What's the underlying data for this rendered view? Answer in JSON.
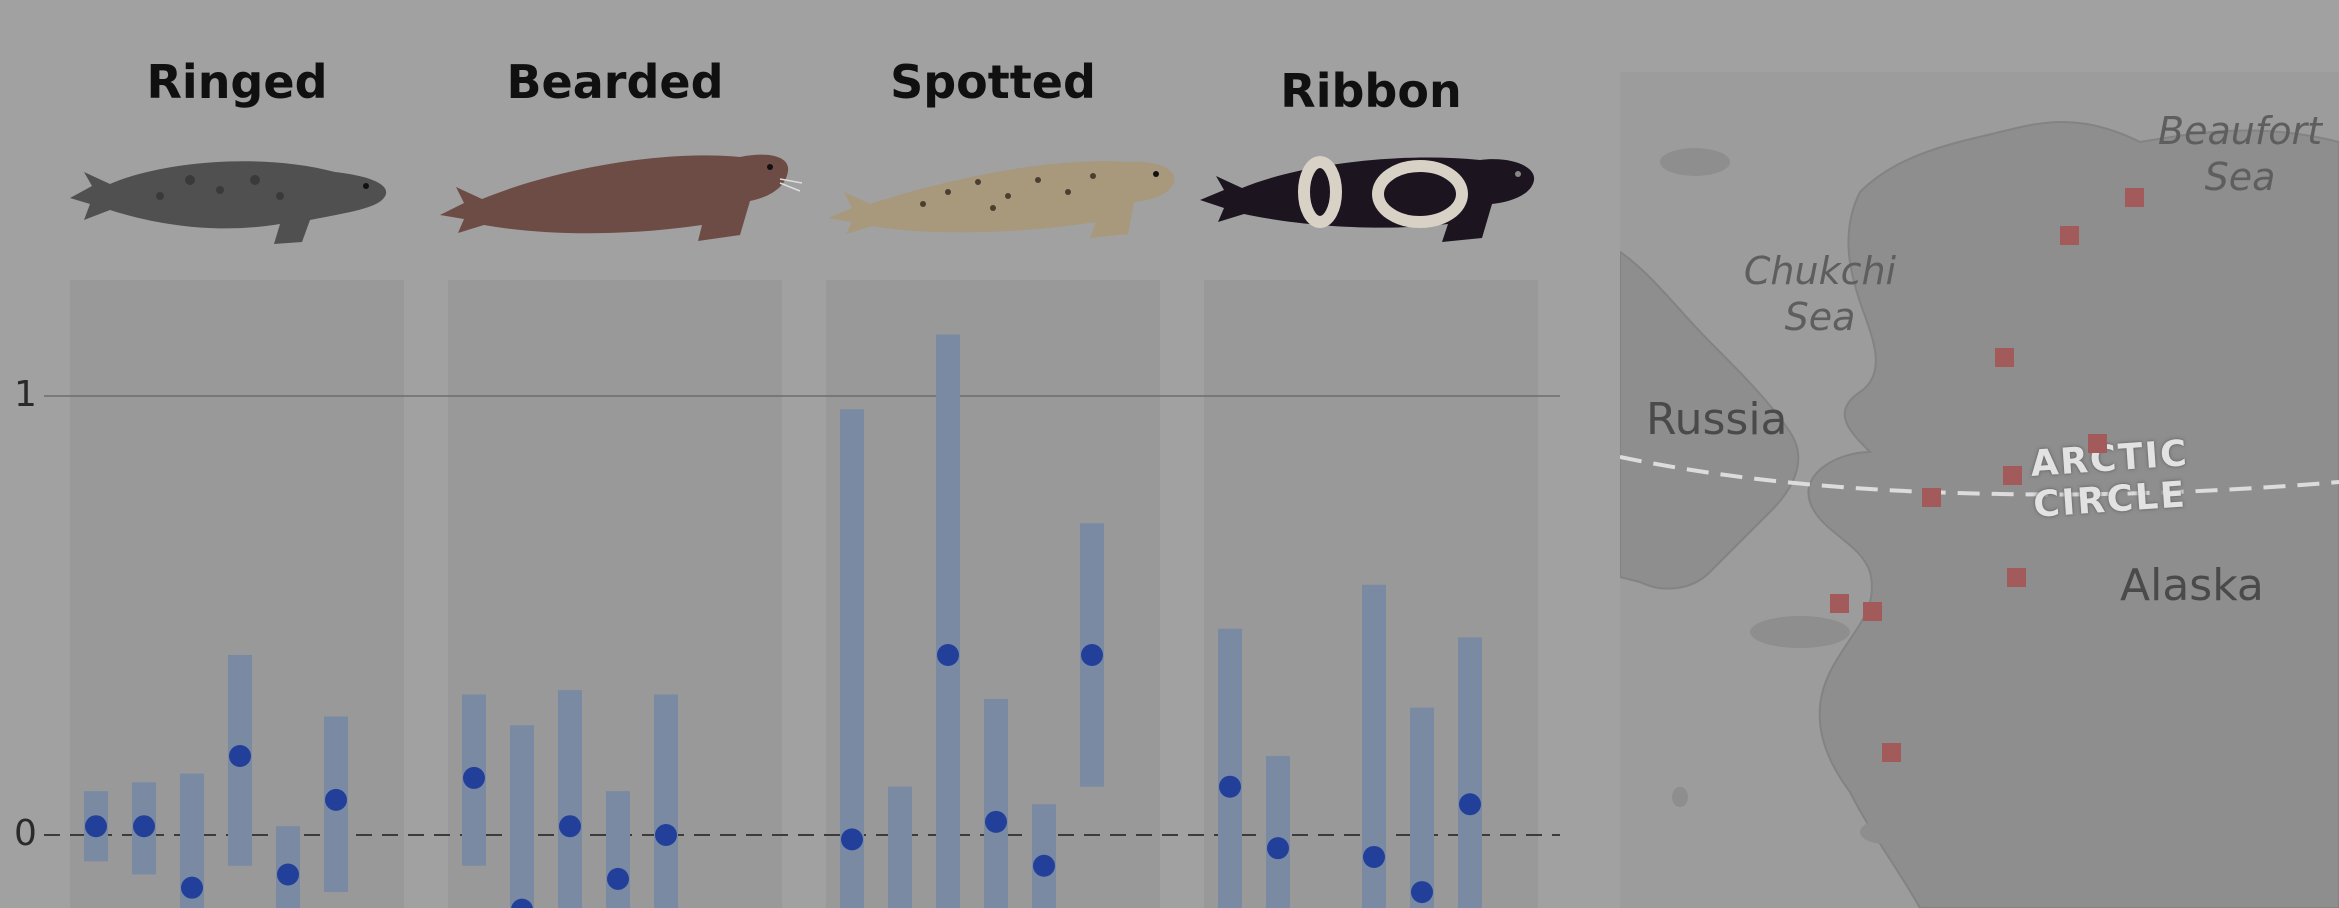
{
  "chart_data": {
    "type": "scatter",
    "error_bars": true,
    "yticks": [
      0,
      1
    ],
    "ylim": [
      -0.17,
      1.26
    ],
    "reference_line_zero": "dashed",
    "panels": [
      {
        "name": "Ringed",
        "points": [
          {
            "value": 0.02,
            "low": -0.06,
            "high": 0.1
          },
          {
            "value": 0.02,
            "low": -0.09,
            "high": 0.12
          },
          {
            "value": -0.12,
            "low": -0.2,
            "high": 0.14
          },
          {
            "value": 0.18,
            "low": -0.07,
            "high": 0.41
          },
          {
            "value": -0.09,
            "low": -0.2,
            "high": 0.02
          },
          {
            "value": 0.08,
            "low": -0.13,
            "high": 0.27
          }
        ]
      },
      {
        "name": "Bearded",
        "points": [
          {
            "value": 0.13,
            "low": -0.07,
            "high": 0.32
          },
          {
            "value": -0.17,
            "low": -0.2,
            "high": 0.25
          },
          {
            "value": 0.02,
            "low": -0.2,
            "high": 0.33
          },
          {
            "value": -0.1,
            "low": -0.2,
            "high": 0.1
          },
          {
            "value": 0.0,
            "low": -0.2,
            "high": 0.32
          }
        ]
      },
      {
        "name": "Spotted",
        "points": [
          {
            "value": -0.01,
            "low": -0.2,
            "high": 0.97
          },
          {
            "value": null,
            "low": -0.2,
            "high": 0.11
          },
          {
            "value": 0.41,
            "low": -0.2,
            "high": 1.14
          },
          {
            "value": 0.03,
            "low": -0.2,
            "high": 0.31
          },
          {
            "value": -0.07,
            "low": -0.2,
            "high": 0.07
          },
          {
            "value": 0.41,
            "low": 0.11,
            "high": 0.71
          }
        ]
      },
      {
        "name": "Ribbon",
        "points": [
          {
            "value": 0.11,
            "low": -0.2,
            "high": 0.47
          },
          {
            "value": -0.03,
            "low": -0.2,
            "high": 0.18
          },
          {
            "value": null,
            "low": -0.2,
            "high": null
          },
          {
            "value": -0.05,
            "low": -0.2,
            "high": 0.57
          },
          {
            "value": -0.13,
            "low": -0.2,
            "high": 0.29
          },
          {
            "value": 0.07,
            "low": -0.2,
            "high": 0.45
          }
        ]
      }
    ],
    "colors": {
      "dot": "#22409a",
      "bar": "#7a8aa3",
      "panel_bg": "#999999",
      "background": "#a1a1a1"
    }
  },
  "panel_titles": [
    "Ringed",
    "Bearded",
    "Spotted",
    "Ribbon"
  ],
  "axis": {
    "tick_0": "0",
    "tick_1": "1"
  },
  "map": {
    "sea_labels": [
      {
        "name": "chukchi-sea-label",
        "line1": "Chukchi",
        "line2": "Sea"
      },
      {
        "name": "beaufort-sea-label",
        "line1": "Beaufort",
        "line2": "Sea"
      }
    ],
    "land_labels": {
      "russia": "Russia",
      "alaska": "Alaska"
    },
    "arctic_circle": "ARCTIC CIRCLE",
    "marker_color": "#a25a5a"
  },
  "icons": [
    "ringed-seal-icon",
    "bearded-seal-icon",
    "spotted-seal-icon",
    "ribbon-seal-icon"
  ]
}
